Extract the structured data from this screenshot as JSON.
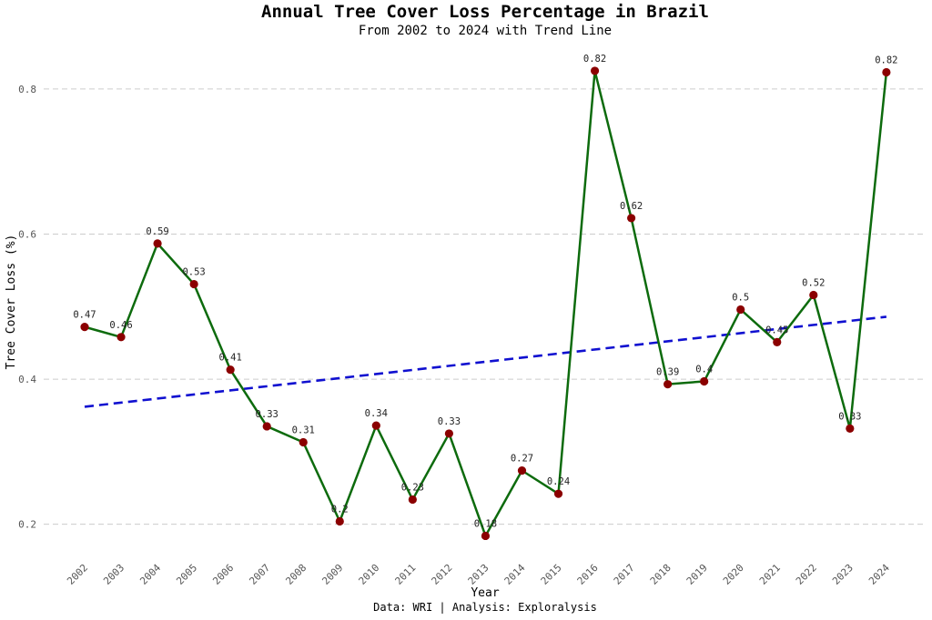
{
  "chart_data": {
    "type": "line",
    "title": "Annual Tree Cover Loss Percentage in Brazil",
    "subtitle": "From 2002 to 2024 with Trend Line",
    "xlabel": "Year",
    "ylabel": "Tree Cover Loss (%)",
    "caption": "Data: WRI | Analysis: Exploralysis",
    "categories": [
      "2002",
      "2003",
      "2004",
      "2005",
      "2006",
      "2007",
      "2008",
      "2009",
      "2010",
      "2011",
      "2012",
      "2013",
      "2014",
      "2015",
      "2016",
      "2017",
      "2018",
      "2019",
      "2020",
      "2021",
      "2022",
      "2023",
      "2024"
    ],
    "series": [
      {
        "values": [
          0.472,
          0.458,
          0.587,
          0.531,
          0.413,
          0.335,
          0.313,
          0.204,
          0.336,
          0.234,
          0.325,
          0.184,
          0.274,
          0.242,
          0.825,
          0.622,
          0.393,
          0.397,
          0.496,
          0.451,
          0.516,
          0.332,
          0.823
        ],
        "labels": [
          "0.47",
          "0.46",
          "0.59",
          "0.53",
          "0.41",
          "0.33",
          "0.31",
          "0.2",
          "0.34",
          "0.23",
          "0.33",
          "0.18",
          "0.27",
          "0.24",
          "0.82",
          "0.62",
          "0.39",
          "0.4",
          "0.5",
          "0.45",
          "0.52",
          "0.33",
          "0.82"
        ],
        "line_color": "#0d6b0d",
        "marker_color": "#8b0000"
      }
    ],
    "trend_line": {
      "start": 0.362,
      "end": 0.486,
      "color": "#1010d0",
      "style": "dashed"
    },
    "yticks": [
      "0.2",
      "0.4",
      "0.6",
      "0.8"
    ],
    "ylim": [
      0.157,
      0.86
    ],
    "grid": "horizontal dashed",
    "legend": "none"
  }
}
